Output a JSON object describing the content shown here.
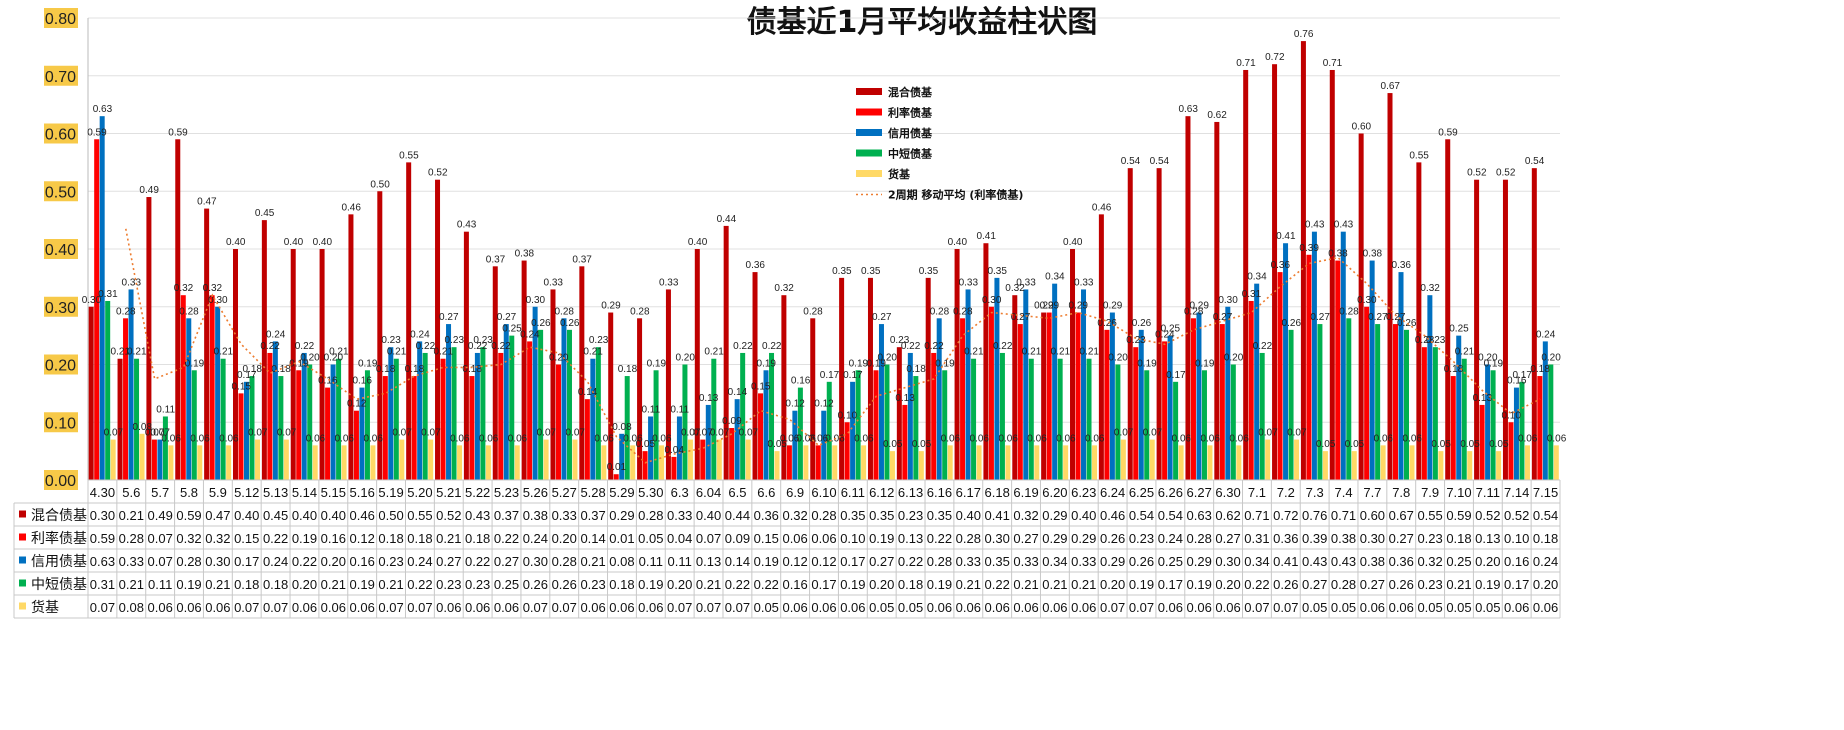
{
  "chart_data": {
    "type": "bar",
    "title": "债基近1月平均收益柱状图",
    "ylim": [
      0,
      0.8
    ],
    "yticks": [
      "0.00",
      "0.10",
      "0.20",
      "0.30",
      "0.40",
      "0.50",
      "0.60",
      "0.70",
      "0.80"
    ],
    "grid": true,
    "legend_position": "top-center",
    "data_table": true,
    "categories": [
      "4.30",
      "5.6",
      "5.7",
      "5.8",
      "5.9",
      "5.12",
      "5.13",
      "5.14",
      "5.15",
      "5.16",
      "5.19",
      "5.20",
      "5.21",
      "5.22",
      "5.23",
      "5.26",
      "5.27",
      "5.28",
      "5.29",
      "5.30",
      "6.3",
      "6.04",
      "6.5",
      "6.6",
      "6.9",
      "6.10",
      "6.11",
      "6.12",
      "6.13",
      "6.16",
      "6.17",
      "6.18",
      "6.19",
      "6.20",
      "6.23",
      "6.24",
      "6.25",
      "6.26",
      "6.27",
      "6.30",
      "7.1",
      "7.2",
      "7.3",
      "7.4",
      "7.7",
      "7.8",
      "7.9",
      "7.10",
      "7.11",
      "7.14",
      "7.15"
    ],
    "series": [
      {
        "name": "混合债基",
        "color": "#c00000",
        "values": [
          0.3,
          0.21,
          0.49,
          0.59,
          0.47,
          0.4,
          0.45,
          0.4,
          0.4,
          0.46,
          0.5,
          0.55,
          0.52,
          0.43,
          0.37,
          0.38,
          0.33,
          0.37,
          0.29,
          0.28,
          0.33,
          0.4,
          0.44,
          0.36,
          0.32,
          0.28,
          0.35,
          0.35,
          0.23,
          0.35,
          0.4,
          0.41,
          0.32,
          0.29,
          0.4,
          0.46,
          0.54,
          0.54,
          0.63,
          0.62,
          0.71,
          0.72,
          0.76,
          0.71,
          0.6,
          0.67,
          0.55,
          0.59,
          0.52,
          0.52,
          0.54
        ]
      },
      {
        "name": "利率债基",
        "color": "#ff0000",
        "values": [
          0.59,
          0.28,
          0.07,
          0.32,
          0.32,
          0.15,
          0.22,
          0.19,
          0.16,
          0.12,
          0.18,
          0.18,
          0.21,
          0.18,
          0.22,
          0.24,
          0.2,
          0.14,
          0.01,
          0.05,
          0.04,
          0.07,
          0.09,
          0.15,
          0.06,
          0.06,
          0.1,
          0.19,
          0.13,
          0.22,
          0.28,
          0.3,
          0.27,
          0.29,
          0.29,
          0.26,
          0.23,
          0.24,
          0.28,
          0.27,
          0.31,
          0.36,
          0.39,
          0.38,
          0.3,
          0.27,
          0.23,
          0.18,
          0.13,
          0.1,
          0.18
        ]
      },
      {
        "name": "信用债基",
        "color": "#0070c0",
        "values": [
          0.63,
          0.33,
          0.07,
          0.28,
          0.3,
          0.17,
          0.24,
          0.22,
          0.2,
          0.16,
          0.23,
          0.24,
          0.27,
          0.22,
          0.27,
          0.3,
          0.28,
          0.21,
          0.08,
          0.11,
          0.11,
          0.13,
          0.14,
          0.19,
          0.12,
          0.12,
          0.17,
          0.27,
          0.22,
          0.28,
          0.33,
          0.35,
          0.33,
          0.34,
          0.33,
          0.29,
          0.26,
          0.25,
          0.29,
          0.3,
          0.34,
          0.41,
          0.43,
          0.43,
          0.38,
          0.36,
          0.32,
          0.25,
          0.2,
          0.16,
          0.24
        ]
      },
      {
        "name": "中短债基",
        "color": "#00b050",
        "values": [
          0.31,
          0.21,
          0.11,
          0.19,
          0.21,
          0.18,
          0.18,
          0.2,
          0.21,
          0.19,
          0.21,
          0.22,
          0.23,
          0.23,
          0.25,
          0.26,
          0.26,
          0.23,
          0.18,
          0.19,
          0.2,
          0.21,
          0.22,
          0.22,
          0.16,
          0.17,
          0.19,
          0.2,
          0.18,
          0.19,
          0.21,
          0.22,
          0.21,
          0.21,
          0.21,
          0.2,
          0.19,
          0.17,
          0.19,
          0.2,
          0.22,
          0.26,
          0.27,
          0.28,
          0.27,
          0.26,
          0.23,
          0.21,
          0.19,
          0.17,
          0.2
        ]
      },
      {
        "name": "货基",
        "color": "#ffd966",
        "values": [
          0.07,
          0.08,
          0.06,
          0.06,
          0.06,
          0.07,
          0.07,
          0.06,
          0.06,
          0.06,
          0.07,
          0.07,
          0.06,
          0.06,
          0.06,
          0.07,
          0.07,
          0.06,
          0.06,
          0.06,
          0.07,
          0.07,
          0.07,
          0.05,
          0.06,
          0.06,
          0.06,
          0.05,
          0.05,
          0.06,
          0.06,
          0.06,
          0.06,
          0.06,
          0.06,
          0.07,
          0.07,
          0.06,
          0.06,
          0.06,
          0.07,
          0.07,
          0.05,
          0.05,
          0.06,
          0.06,
          0.05,
          0.05,
          0.05,
          0.06,
          0.06
        ]
      }
    ],
    "trendline": {
      "name": "2周期 移动平均 (利率债基)",
      "color": "#ed7d31",
      "style": "dotted",
      "period": 2,
      "of_series": "利率债基"
    }
  }
}
